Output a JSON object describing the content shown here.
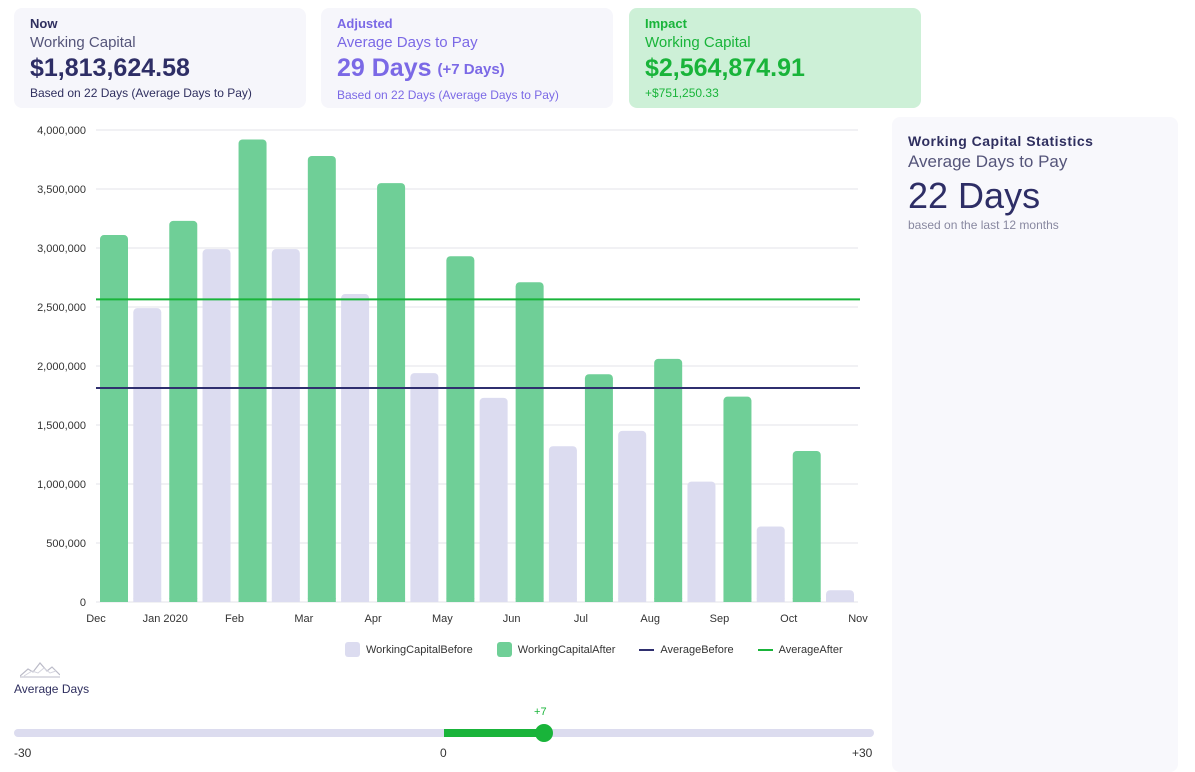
{
  "cards": {
    "now": {
      "kicker": "Now",
      "sub": "Working Capital",
      "big": "$1,813,624.58",
      "note": "Based on 22 Days (Average Days to Pay)"
    },
    "adjusted": {
      "kicker": "Adjusted",
      "sub": "Average Days to Pay",
      "big": "29 Days",
      "delta": "(+7 Days)",
      "note": "Based on 22 Days (Average Days to Pay)"
    },
    "impact": {
      "kicker": "Impact",
      "sub": "Working Capital",
      "big": "$2,564,874.91",
      "note": "+$751,250.33"
    }
  },
  "chart_data": {
    "type": "bar",
    "categories": [
      "Dec",
      "Jan 2020",
      "Feb",
      "Mar",
      "Apr",
      "May",
      "Jun",
      "Jul",
      "Aug",
      "Sep",
      "Oct",
      "Nov"
    ],
    "series": [
      {
        "name": "WorkingCapitalBefore",
        "color": "#dcdcf0",
        "values": [
          0,
          2490000,
          2990000,
          2990000,
          2610000,
          1940000,
          1730000,
          1320000,
          1450000,
          1020000,
          640000,
          100000
        ]
      },
      {
        "name": "WorkingCapitalAfter",
        "color": "#6fcf97",
        "values": [
          3110000,
          3230000,
          3920000,
          3780000,
          3550000,
          2930000,
          2710000,
          1930000,
          2060000,
          1740000,
          1280000,
          0
        ]
      }
    ],
    "lines": [
      {
        "name": "AverageBefore",
        "color": "#2f2f6f",
        "value": 1813624.58
      },
      {
        "name": "AverageAfter",
        "color": "#19b43a",
        "value": 2564874.91
      }
    ],
    "yticks": [
      "0",
      "500,000",
      "1,000,000",
      "1,500,000",
      "2,000,000",
      "2,500,000",
      "3,000,000",
      "3,500,000",
      "4,000,000"
    ],
    "ylim": [
      0,
      4000000
    ],
    "grid": true,
    "legend": "bottom"
  },
  "slider": {
    "label": "Average Days",
    "min": -30,
    "max": 30,
    "value": 7,
    "min_label": "-30",
    "zero_label": "0",
    "max_label": "+30",
    "value_label": "+7",
    "icon": "mountain-chart-icon"
  },
  "stats": {
    "title": "Working Capital Statistics",
    "sub": "Average Days to Pay",
    "big": "22 Days",
    "note": "based on the last 12 months"
  }
}
